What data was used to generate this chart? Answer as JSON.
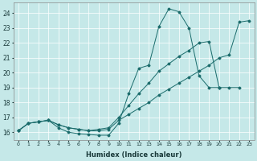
{
  "xlabel": "Humidex (Indice chaleur)",
  "background_color": "#c5e8e8",
  "line_color": "#1a6b6b",
  "xlim": [
    -0.5,
    23.5
  ],
  "ylim": [
    15.5,
    24.7
  ],
  "xticks": [
    0,
    1,
    2,
    3,
    4,
    5,
    6,
    7,
    8,
    9,
    10,
    11,
    12,
    13,
    14,
    15,
    16,
    17,
    18,
    19,
    20,
    21,
    22,
    23
  ],
  "yticks": [
    16,
    17,
    18,
    19,
    20,
    21,
    22,
    23,
    24
  ],
  "series": [
    {
      "x": [
        0,
        1,
        2,
        3,
        4,
        5,
        6,
        7,
        8,
        9,
        10,
        11,
        12,
        13,
        14,
        15,
        16,
        17,
        18,
        19,
        20
      ],
      "y": [
        16.1,
        16.6,
        16.7,
        16.8,
        16.3,
        16.0,
        15.9,
        15.85,
        15.8,
        15.8,
        16.6,
        18.6,
        20.3,
        20.5,
        23.1,
        24.3,
        24.1,
        23.0,
        19.8,
        19.0,
        19.0
      ]
    },
    {
      "x": [
        0,
        1,
        2,
        3,
        4,
        5,
        6,
        7,
        8,
        9,
        10,
        11,
        12,
        13,
        14,
        15,
        16,
        17,
        18,
        19,
        20,
        21,
        22
      ],
      "y": [
        16.1,
        16.6,
        16.7,
        16.8,
        16.5,
        16.3,
        16.2,
        16.1,
        16.2,
        16.3,
        17.0,
        17.8,
        18.6,
        19.3,
        20.1,
        20.6,
        21.1,
        21.5,
        22.0,
        22.1,
        19.0,
        19.0,
        19.0
      ]
    },
    {
      "x": [
        0,
        1,
        2,
        3,
        4,
        5,
        6,
        7,
        8,
        9,
        10,
        11,
        12,
        13,
        14,
        15,
        16,
        17,
        18,
        19,
        20,
        21,
        22,
        23
      ],
      "y": [
        16.1,
        16.6,
        16.7,
        16.8,
        16.5,
        16.3,
        16.2,
        16.1,
        16.1,
        16.2,
        16.8,
        17.2,
        17.6,
        18.0,
        18.5,
        18.9,
        19.3,
        19.7,
        20.1,
        20.5,
        21.0,
        21.2,
        23.4,
        23.5
      ]
    }
  ]
}
